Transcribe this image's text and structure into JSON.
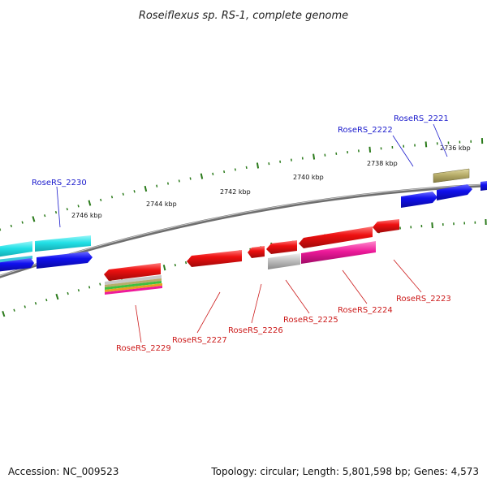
{
  "title": "Roseiflexus sp. RS-1, complete genome",
  "footer": {
    "accession": "Accession: NC_009523",
    "summary": "Topology: circular; Length: 5,801,598 bp; Genes: 4,573"
  },
  "colors": {
    "backbone": "#808080",
    "tick": "#2a7a1a",
    "top_label": "#1a1acc",
    "bottom_label": "#cc1a1a"
  },
  "tick_labels": [
    "2736 kbp",
    "2738 kbp",
    "2740 kbp",
    "2742 kbp",
    "2744 kbp",
    "2746 kbp"
  ],
  "gene_labels": {
    "top": [
      "RoseRS_2221",
      "RoseRS_2222",
      "RoseRS_2230"
    ],
    "bottom": [
      "RoseRS_2223",
      "RoseRS_2224",
      "RoseRS_2225",
      "RoseRS_2226",
      "RoseRS_2227",
      "RoseRS_2229"
    ]
  },
  "features": [
    {
      "name": "olive-gene",
      "color": "#b7ad6a"
    },
    {
      "name": "cyan-gene-upper",
      "color": "#22e0e6"
    },
    {
      "name": "cyan-gene-lower",
      "color": "#22e0e6"
    },
    {
      "name": "blue-gene",
      "color": "#1a1aee"
    },
    {
      "name": "red-gene",
      "color": "#ee1a1a"
    },
    {
      "name": "gray-gene",
      "color": "#b8b8b8"
    },
    {
      "name": "magenta-gene",
      "color": "#ee1a9a"
    }
  ]
}
